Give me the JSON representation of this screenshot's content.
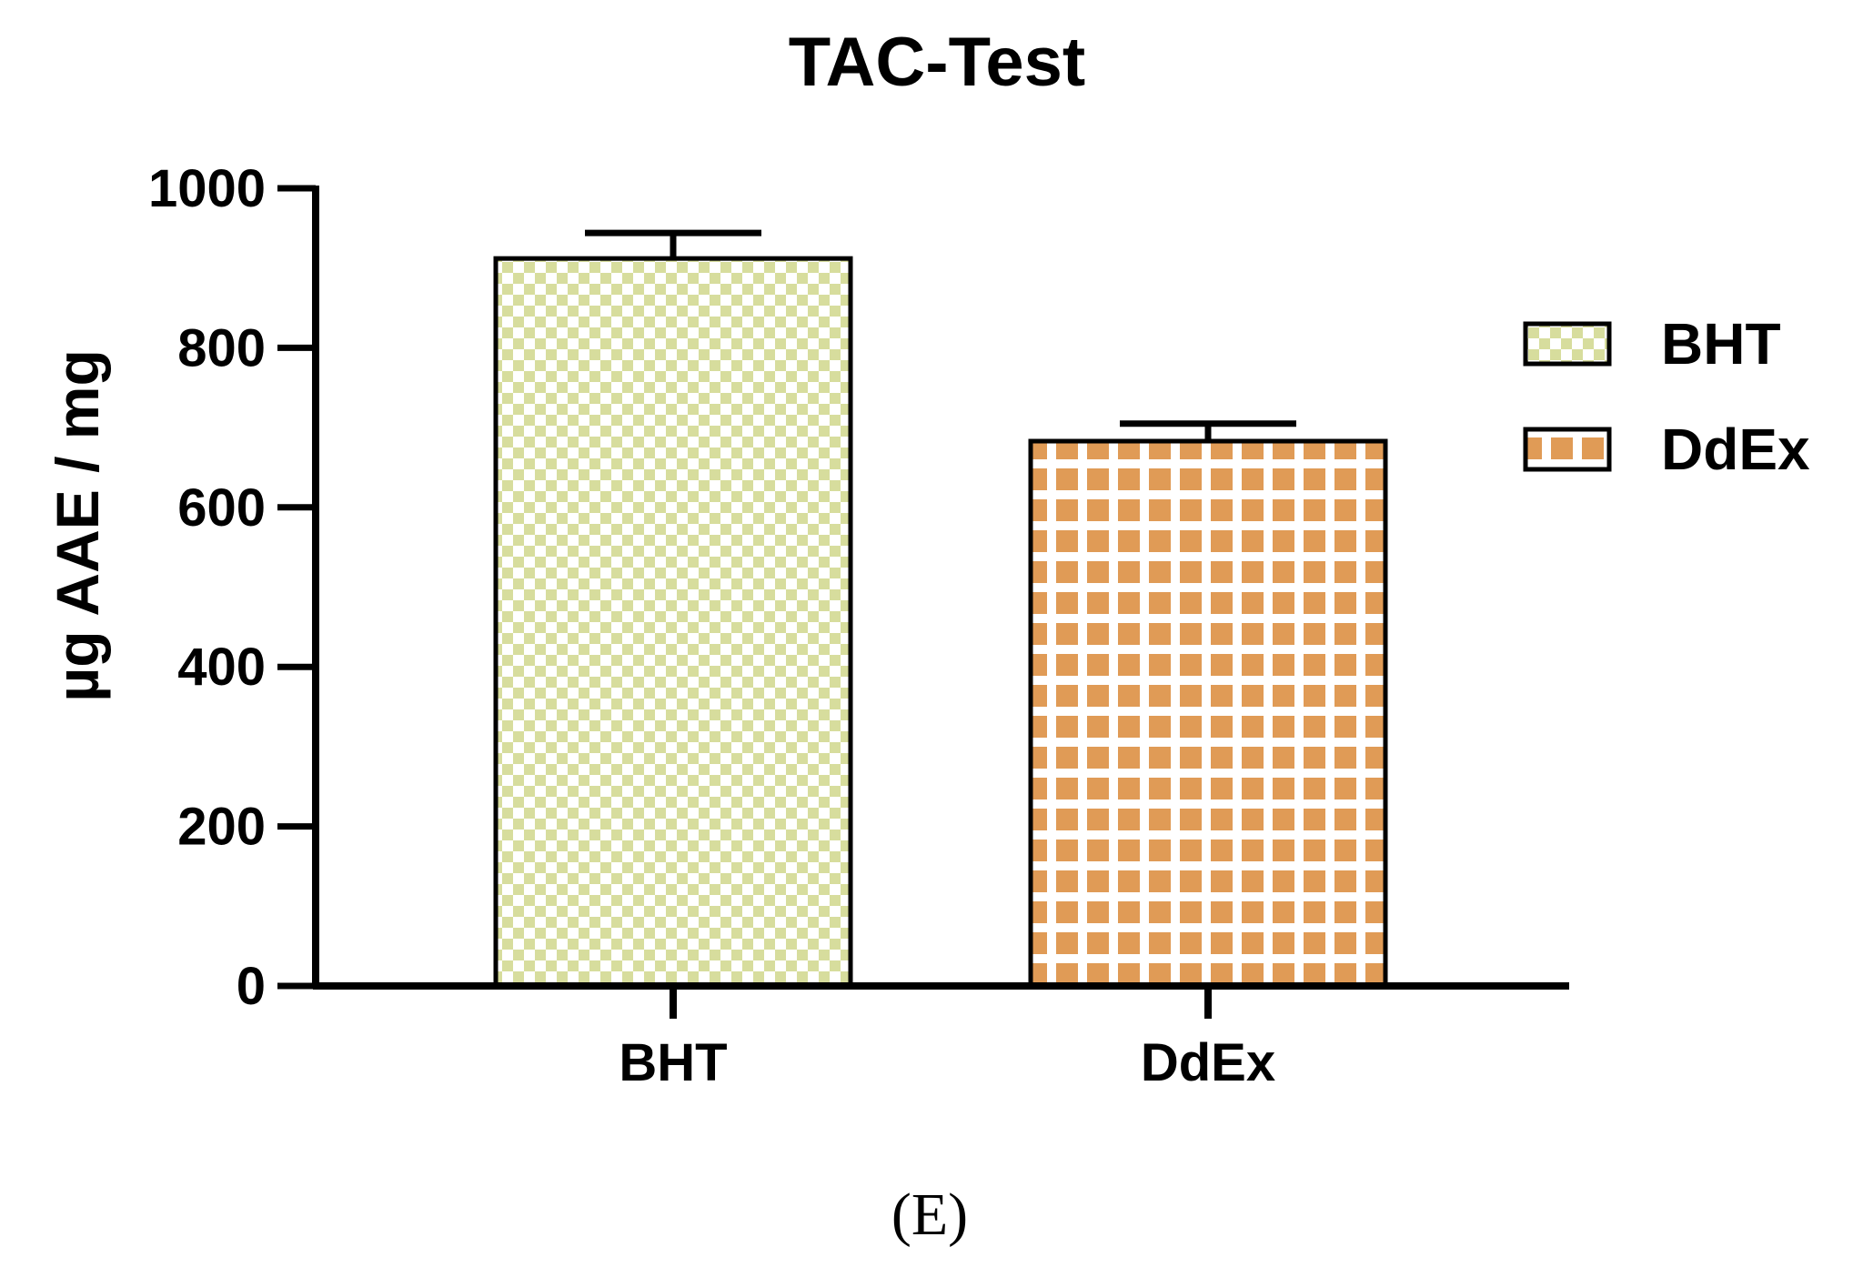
{
  "chart_data": {
    "type": "bar",
    "title": "TAC-Test",
    "xlabel": "",
    "ylabel": "µg AAE / mg",
    "ylim": [
      0,
      1000
    ],
    "yticks": [
      0,
      200,
      400,
      600,
      800,
      1000
    ],
    "categories": [
      "BHT",
      "DdEx"
    ],
    "values": [
      912,
      683
    ],
    "errors": [
      32,
      22
    ],
    "legend": {
      "placement": "right",
      "entries": [
        "BHT",
        "DdEx"
      ]
    },
    "grid": false,
    "panel_label": "(E)"
  },
  "colors": {
    "bht_fill": "#d7dd9d",
    "ddex_fill": "#e09b56",
    "axis": "#000000",
    "background": "#ffffff"
  }
}
